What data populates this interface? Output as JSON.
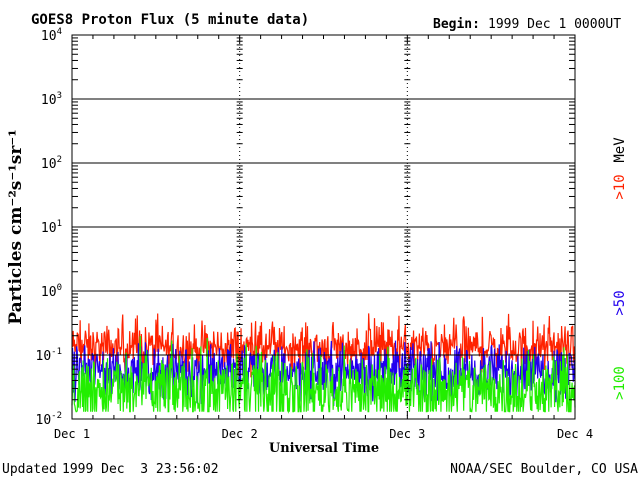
{
  "chart_data": {
    "type": "line",
    "title": "GOES8 Proton Flux (5 minute data)",
    "begin_label": "Begin:",
    "begin_value": "1999 Dec 1 0000UT",
    "ylabel": "Particles cm⁻²s⁻¹sr⁻¹",
    "xlabel": "Universal Time",
    "y_scale": "log",
    "ylim": [
      0.01,
      10000
    ],
    "y_ticks": [
      {
        "base": "10",
        "exp": "-2",
        "value": 0.01
      },
      {
        "base": "10",
        "exp": "-1",
        "value": 0.1
      },
      {
        "base": "10",
        "exp": "0",
        "value": 1
      },
      {
        "base": "10",
        "exp": "1",
        "value": 10
      },
      {
        "base": "10",
        "exp": "2",
        "value": 100
      },
      {
        "base": "10",
        "exp": "3",
        "value": 1000
      },
      {
        "base": "10",
        "exp": "4",
        "value": 10000
      }
    ],
    "x_ticks": [
      {
        "label": "Dec 1",
        "day": 0
      },
      {
        "label": "Dec 2",
        "day": 1
      },
      {
        "label": "Dec 3",
        "day": 2
      },
      {
        "label": "Dec 4",
        "day": 3
      }
    ],
    "xlim_days": [
      0,
      3
    ],
    "grid": true,
    "series": [
      {
        "name": ">10",
        "color": "#ff2200",
        "typical": 0.13,
        "spread": 0.17,
        "spike": 0.45
      },
      {
        "name": ">50",
        "color": "#2200ee",
        "typical": 0.055,
        "spread": 0.2,
        "spike": 0.13
      },
      {
        "name": ">100",
        "color": "#22ee00",
        "typical": 0.028,
        "spread": 0.3,
        "spike": 0.06
      }
    ],
    "legend_unit": "MeV",
    "legend_placement": "right"
  },
  "footer": {
    "updated_label": "Updated",
    "updated_value": "1999 Dec  3 23:56:02",
    "credit": "NOAA/SEC Boulder, CO USA"
  }
}
